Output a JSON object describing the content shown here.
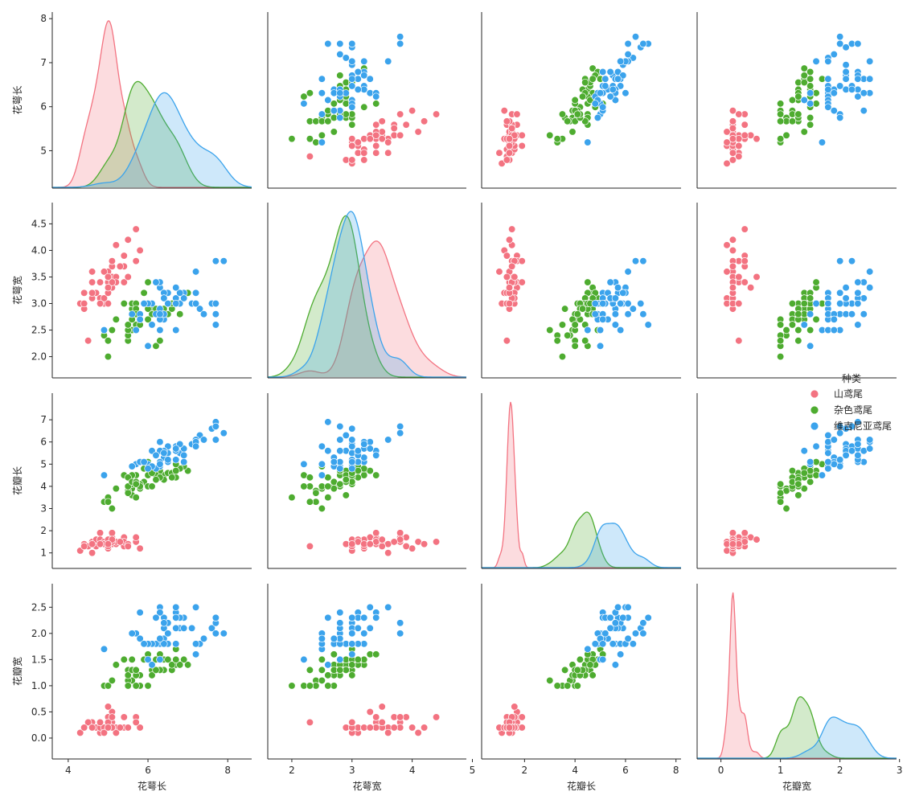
{
  "chart_data": {
    "type": "pairplot",
    "variables": [
      "花萼长",
      "花萼宽",
      "花瓣长",
      "花瓣宽"
    ],
    "variable_labels": [
      "花萼长",
      "花萼宽",
      "花瓣长",
      "花瓣宽"
    ],
    "diagonal": "kde",
    "off_diagonal": "scatter",
    "grid": false,
    "axis_ranges": [
      [
        3.6,
        8.6
      ],
      [
        1.6,
        4.9
      ],
      [
        0.3,
        8.2
      ],
      [
        -0.4,
        2.95
      ]
    ],
    "axis_ticks": [
      [
        4,
        6,
        8
      ],
      [
        2,
        3,
        4,
        5
      ],
      [
        2,
        4,
        6,
        8
      ],
      [
        0,
        1,
        2,
        3
      ]
    ],
    "row_ticks": [
      [
        5,
        6,
        7,
        8
      ],
      [
        2.0,
        2.5,
        3.0,
        3.5,
        4.0,
        4.5
      ],
      [
        1,
        2,
        3,
        4,
        5,
        6,
        7
      ],
      [
        0.0,
        0.5,
        1.0,
        1.5,
        2.0,
        2.5
      ]
    ],
    "legend": {
      "title": "种类",
      "placement": "center-right",
      "entries": [
        "山鸢尾",
        "杂色鸢尾",
        "维吉尼亚鸢尾"
      ]
    },
    "series": [
      {
        "name": "山鸢尾",
        "color": "#f37381",
        "points": [
          [
            5.1,
            3.5,
            1.4,
            0.2
          ],
          [
            4.9,
            3.0,
            1.4,
            0.2
          ],
          [
            4.7,
            3.2,
            1.3,
            0.2
          ],
          [
            4.6,
            3.1,
            1.5,
            0.2
          ],
          [
            5.0,
            3.6,
            1.4,
            0.2
          ],
          [
            5.4,
            3.9,
            1.7,
            0.4
          ],
          [
            4.6,
            3.4,
            1.4,
            0.3
          ],
          [
            5.0,
            3.4,
            1.5,
            0.2
          ],
          [
            4.4,
            2.9,
            1.4,
            0.2
          ],
          [
            4.9,
            3.1,
            1.5,
            0.1
          ],
          [
            5.4,
            3.7,
            1.5,
            0.2
          ],
          [
            4.8,
            3.4,
            1.6,
            0.2
          ],
          [
            4.8,
            3.0,
            1.4,
            0.1
          ],
          [
            4.3,
            3.0,
            1.1,
            0.1
          ],
          [
            5.8,
            4.0,
            1.2,
            0.2
          ],
          [
            5.7,
            4.4,
            1.5,
            0.4
          ],
          [
            5.4,
            3.9,
            1.3,
            0.4
          ],
          [
            5.1,
            3.5,
            1.4,
            0.3
          ],
          [
            5.7,
            3.8,
            1.7,
            0.3
          ],
          [
            5.1,
            3.8,
            1.5,
            0.3
          ],
          [
            5.4,
            3.4,
            1.7,
            0.2
          ],
          [
            5.1,
            3.7,
            1.5,
            0.4
          ],
          [
            4.6,
            3.6,
            1.0,
            0.2
          ],
          [
            5.1,
            3.3,
            1.7,
            0.5
          ],
          [
            4.8,
            3.4,
            1.9,
            0.2
          ],
          [
            5.0,
            3.0,
            1.6,
            0.2
          ],
          [
            5.0,
            3.4,
            1.6,
            0.4
          ],
          [
            5.2,
            3.5,
            1.5,
            0.2
          ],
          [
            5.2,
            3.4,
            1.4,
            0.2
          ],
          [
            4.7,
            3.2,
            1.6,
            0.2
          ],
          [
            4.8,
            3.1,
            1.6,
            0.2
          ],
          [
            5.4,
            3.4,
            1.5,
            0.4
          ],
          [
            5.2,
            4.1,
            1.5,
            0.1
          ],
          [
            5.5,
            4.2,
            1.4,
            0.2
          ],
          [
            4.9,
            3.1,
            1.5,
            0.2
          ],
          [
            5.0,
            3.2,
            1.2,
            0.2
          ],
          [
            5.5,
            3.5,
            1.3,
            0.2
          ],
          [
            4.9,
            3.6,
            1.4,
            0.1
          ],
          [
            4.4,
            3.0,
            1.3,
            0.2
          ],
          [
            5.1,
            3.4,
            1.5,
            0.2
          ],
          [
            5.0,
            3.5,
            1.3,
            0.3
          ],
          [
            4.5,
            2.3,
            1.3,
            0.3
          ],
          [
            4.4,
            3.2,
            1.3,
            0.2
          ],
          [
            5.0,
            3.5,
            1.6,
            0.6
          ],
          [
            5.1,
            3.8,
            1.9,
            0.4
          ],
          [
            4.8,
            3.0,
            1.4,
            0.3
          ],
          [
            5.1,
            3.8,
            1.6,
            0.2
          ],
          [
            4.6,
            3.2,
            1.4,
            0.2
          ],
          [
            5.3,
            3.7,
            1.5,
            0.2
          ],
          [
            5.0,
            3.3,
            1.4,
            0.2
          ]
        ]
      },
      {
        "name": "杂色鸢尾",
        "color": "#4eac30",
        "points": [
          [
            7.0,
            3.2,
            4.7,
            1.4
          ],
          [
            6.4,
            3.2,
            4.5,
            1.5
          ],
          [
            6.9,
            3.1,
            4.9,
            1.5
          ],
          [
            5.5,
            2.3,
            4.0,
            1.3
          ],
          [
            6.5,
            2.8,
            4.6,
            1.5
          ],
          [
            5.7,
            2.8,
            4.5,
            1.3
          ],
          [
            6.3,
            3.3,
            4.7,
            1.6
          ],
          [
            4.9,
            2.4,
            3.3,
            1.0
          ],
          [
            6.6,
            2.9,
            4.6,
            1.3
          ],
          [
            5.2,
            2.7,
            3.9,
            1.4
          ],
          [
            5.0,
            2.0,
            3.5,
            1.0
          ],
          [
            5.9,
            3.0,
            4.2,
            1.5
          ],
          [
            6.0,
            2.2,
            4.0,
            1.0
          ],
          [
            6.1,
            2.9,
            4.7,
            1.4
          ],
          [
            5.6,
            2.9,
            3.6,
            1.3
          ],
          [
            6.7,
            3.1,
            4.4,
            1.4
          ],
          [
            5.6,
            3.0,
            4.5,
            1.5
          ],
          [
            5.8,
            2.7,
            4.1,
            1.0
          ],
          [
            6.2,
            2.2,
            4.5,
            1.5
          ],
          [
            5.6,
            2.5,
            3.9,
            1.1
          ],
          [
            5.9,
            3.2,
            4.8,
            1.8
          ],
          [
            6.1,
            2.8,
            4.0,
            1.3
          ],
          [
            6.3,
            2.5,
            4.9,
            1.5
          ],
          [
            6.1,
            2.8,
            4.7,
            1.2
          ],
          [
            6.4,
            2.9,
            4.3,
            1.3
          ],
          [
            6.6,
            3.0,
            4.4,
            1.4
          ],
          [
            6.8,
            2.8,
            4.8,
            1.4
          ],
          [
            6.7,
            3.0,
            5.0,
            1.7
          ],
          [
            6.0,
            2.9,
            4.5,
            1.5
          ],
          [
            5.7,
            2.6,
            3.5,
            1.0
          ],
          [
            5.5,
            2.4,
            3.8,
            1.1
          ],
          [
            5.5,
            2.4,
            3.7,
            1.0
          ],
          [
            5.8,
            2.7,
            3.9,
            1.2
          ],
          [
            6.0,
            2.7,
            5.1,
            1.6
          ],
          [
            5.4,
            3.0,
            4.5,
            1.5
          ],
          [
            6.0,
            3.4,
            4.5,
            1.6
          ],
          [
            6.7,
            3.1,
            4.7,
            1.5
          ],
          [
            6.3,
            2.3,
            4.4,
            1.3
          ],
          [
            5.6,
            3.0,
            4.1,
            1.3
          ],
          [
            5.5,
            2.5,
            4.0,
            1.3
          ],
          [
            5.5,
            2.6,
            4.4,
            1.2
          ],
          [
            6.1,
            3.0,
            4.6,
            1.4
          ],
          [
            5.8,
            2.6,
            4.0,
            1.2
          ],
          [
            5.0,
            2.3,
            3.3,
            1.0
          ],
          [
            5.6,
            2.7,
            4.2,
            1.3
          ],
          [
            5.7,
            3.0,
            4.2,
            1.2
          ],
          [
            5.7,
            2.9,
            4.2,
            1.3
          ],
          [
            6.2,
            2.9,
            4.3,
            1.3
          ],
          [
            5.1,
            2.5,
            3.0,
            1.1
          ],
          [
            5.7,
            2.8,
            4.1,
            1.3
          ]
        ]
      },
      {
        "name": "维吉尼亚鸢尾",
        "color": "#3ba3ec",
        "points": [
          [
            6.3,
            3.3,
            6.0,
            2.5
          ],
          [
            5.8,
            2.7,
            5.1,
            1.9
          ],
          [
            7.1,
            3.0,
            5.9,
            2.1
          ],
          [
            6.3,
            2.9,
            5.6,
            1.8
          ],
          [
            6.5,
            3.0,
            5.8,
            2.2
          ],
          [
            7.6,
            3.0,
            6.6,
            2.1
          ],
          [
            4.9,
            2.5,
            4.5,
            1.7
          ],
          [
            7.3,
            2.9,
            6.3,
            1.8
          ],
          [
            6.7,
            2.5,
            5.8,
            1.8
          ],
          [
            7.2,
            3.6,
            6.1,
            2.5
          ],
          [
            6.5,
            3.2,
            5.1,
            2.0
          ],
          [
            6.4,
            2.7,
            5.3,
            1.9
          ],
          [
            6.8,
            3.0,
            5.5,
            2.1
          ],
          [
            5.7,
            2.5,
            5.0,
            2.0
          ],
          [
            5.8,
            2.8,
            5.1,
            2.4
          ],
          [
            6.4,
            3.2,
            5.3,
            2.3
          ],
          [
            6.5,
            3.0,
            5.5,
            1.8
          ],
          [
            7.7,
            3.8,
            6.7,
            2.2
          ],
          [
            7.7,
            2.6,
            6.9,
            2.3
          ],
          [
            6.0,
            2.2,
            5.0,
            1.5
          ],
          [
            6.9,
            3.2,
            5.7,
            2.3
          ],
          [
            5.6,
            2.8,
            4.9,
            2.0
          ],
          [
            7.7,
            2.8,
            6.7,
            2.0
          ],
          [
            6.3,
            2.7,
            4.9,
            1.8
          ],
          [
            6.7,
            3.3,
            5.7,
            2.1
          ],
          [
            7.2,
            3.2,
            6.0,
            1.8
          ],
          [
            6.2,
            2.8,
            4.8,
            1.8
          ],
          [
            6.1,
            3.0,
            4.9,
            1.8
          ],
          [
            6.4,
            2.8,
            5.6,
            2.1
          ],
          [
            7.2,
            3.0,
            5.8,
            1.6
          ],
          [
            7.4,
            2.8,
            6.1,
            1.9
          ],
          [
            7.9,
            3.8,
            6.4,
            2.0
          ],
          [
            6.4,
            2.8,
            5.6,
            2.2
          ],
          [
            6.3,
            2.8,
            5.1,
            1.5
          ],
          [
            6.1,
            2.6,
            5.6,
            1.4
          ],
          [
            7.7,
            3.0,
            6.1,
            2.3
          ],
          [
            6.3,
            3.4,
            5.6,
            2.4
          ],
          [
            6.4,
            3.1,
            5.5,
            1.8
          ],
          [
            6.0,
            3.0,
            4.8,
            1.8
          ],
          [
            6.9,
            3.1,
            5.4,
            2.1
          ],
          [
            6.7,
            3.1,
            5.6,
            2.4
          ],
          [
            6.9,
            3.1,
            5.1,
            2.3
          ],
          [
            5.8,
            2.7,
            5.1,
            1.9
          ],
          [
            6.8,
            3.2,
            5.9,
            2.3
          ],
          [
            6.7,
            3.3,
            5.7,
            2.5
          ],
          [
            6.7,
            3.0,
            5.2,
            2.3
          ],
          [
            6.3,
            2.5,
            5.0,
            1.9
          ],
          [
            6.5,
            3.0,
            5.2,
            2.0
          ],
          [
            6.2,
            3.4,
            5.4,
            2.3
          ],
          [
            5.9,
            3.0,
            5.1,
            1.8
          ]
        ]
      }
    ]
  }
}
